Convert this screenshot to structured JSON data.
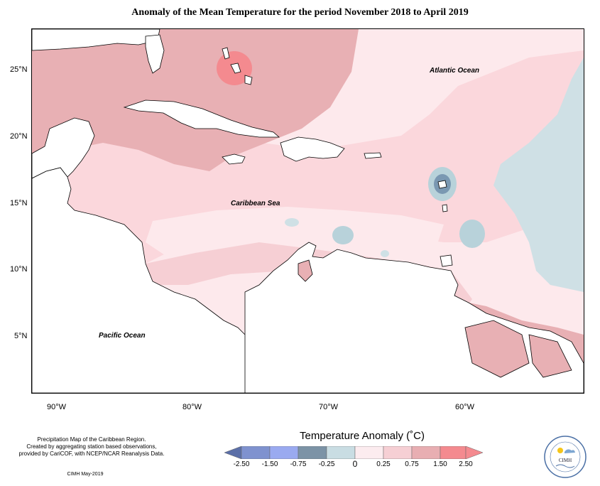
{
  "title": "Anomaly of the Mean Temperature for the period November 2018 to April 2019",
  "map": {
    "labels": {
      "atlantic": "Atlantic Ocean",
      "caribbean": "Caribbean Sea",
      "pacific": "Pacific Ocean"
    },
    "lat_ticks": [
      "25°N",
      "20°N",
      "15°N",
      "10°N",
      "5°N"
    ],
    "lon_ticks": [
      "90°W",
      "80°W",
      "70°W",
      "60°W"
    ],
    "colors": {
      "land": "#ffffff",
      "anom_0_025": "#fde9ec",
      "anom_025_075": "#fbd7dc",
      "anom_075_150": "#e8b0b4",
      "anom_150_250": "#f48a8f",
      "anom_neg_025_0": "#cfe0e5",
      "anom_neg_075_025": "#b8d2da",
      "anom_neg_150_075": "#7a98b2"
    }
  },
  "legend": {
    "title": "Temperature Anomaly (˚C)",
    "tick_labels": [
      "-2.50",
      "-1.50",
      "-0.75",
      "-0.25",
      "0",
      "0.25",
      "0.75",
      "1.50",
      "2.50"
    ],
    "bins": [
      {
        "color": "#5b6fa8"
      },
      {
        "color": "#7f92cf"
      },
      {
        "color": "#9aaaf0"
      },
      {
        "color": "#7c93a6"
      },
      {
        "color": "#c9dde3"
      },
      {
        "color": "#fcecef"
      },
      {
        "color": "#f6cfd4"
      },
      {
        "color": "#e8aeb2"
      },
      {
        "color": "#f48a8f"
      }
    ]
  },
  "footer": {
    "line1": "Precipitation Map of the Caribbean Region.",
    "line2": "Created by aggregating station based observations,",
    "line3": "provided by CariCOF, with NCEP/NCAR Reanalysis Data.",
    "credit": "CIMH May-2019"
  },
  "logo": {
    "text": "CIMH"
  }
}
